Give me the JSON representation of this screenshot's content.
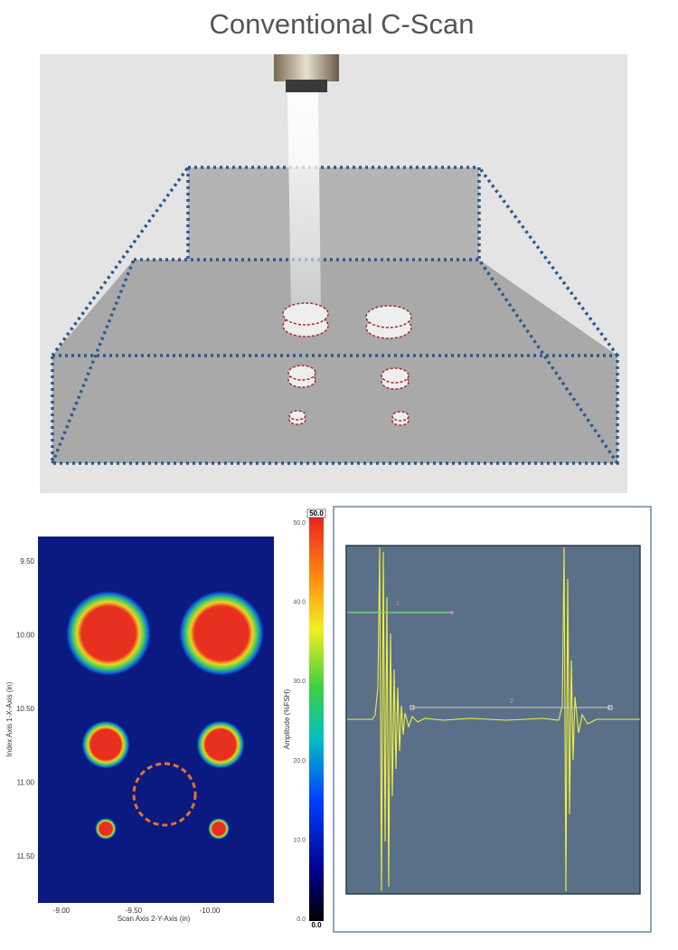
{
  "header": {
    "title": "Conventional C-Scan"
  },
  "cscan": {
    "y_axis_label": "Index Axis 1-X-Axis (in)",
    "x_axis_label": "Scan Axis 2-Y-Axis (in)",
    "y_ticks": [
      "9.50",
      "10.00",
      "10.50",
      "11.00",
      "11.50"
    ],
    "x_ticks": [
      "-9.00",
      "-9.50",
      "-10.00"
    ]
  },
  "colorbar": {
    "label": "Amplitude (%FSH)",
    "max_label": "50.0",
    "min_label": "0.0",
    "ticks": [
      "50.0",
      "40.0",
      "30.0",
      "20.0",
      "10.0",
      "0.0"
    ]
  },
  "ascan": {
    "markers": [
      "1",
      "2"
    ]
  }
}
